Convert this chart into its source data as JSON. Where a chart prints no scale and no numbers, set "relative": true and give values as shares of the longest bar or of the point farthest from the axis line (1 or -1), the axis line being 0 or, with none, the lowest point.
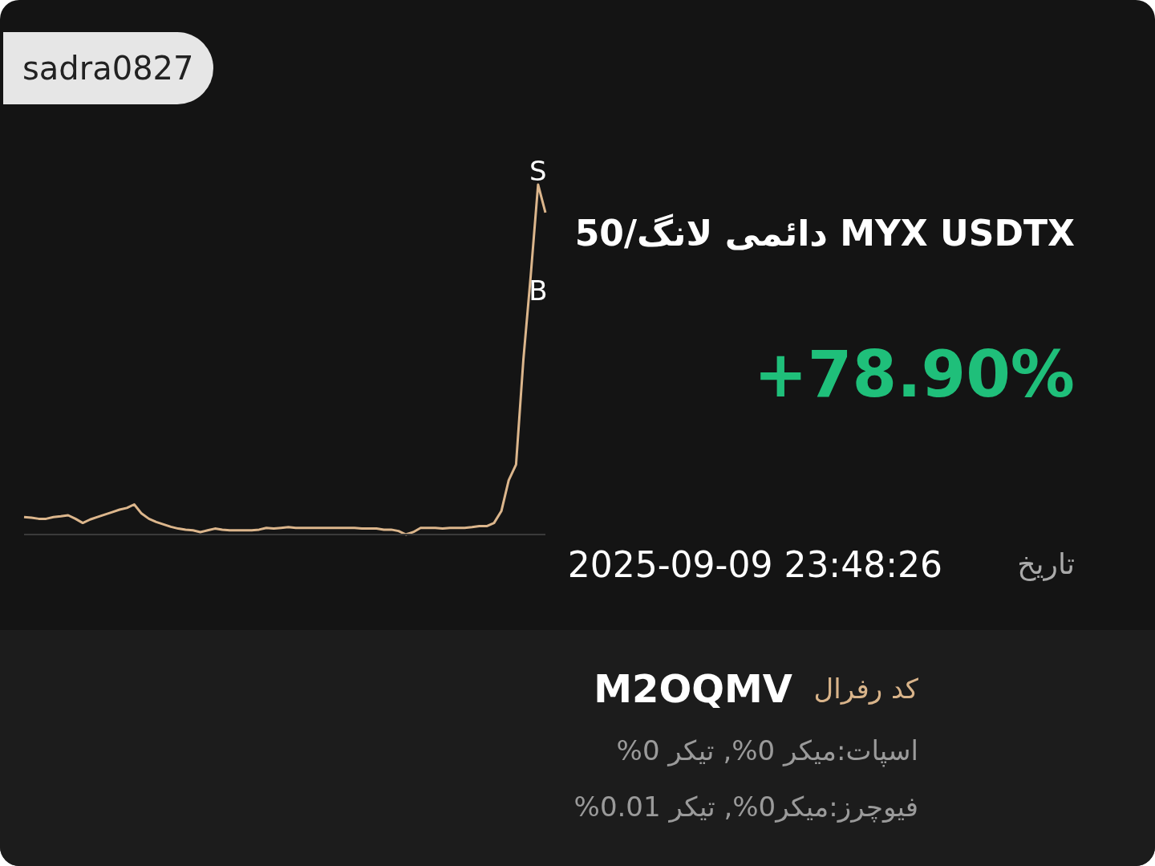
{
  "chart_data": {
    "type": "line",
    "relative": true,
    "title": "MYX USDTX دائمی لانگ/50",
    "subtitle": "+78.90%",
    "annotations": [
      "sadra0827",
      "تاریخ",
      "2025-09-09 23:48:26",
      "کد رفرال",
      "M2OQMV",
      "اسپات:میکر 0%, تیکر 0%",
      "فیوچرز:میکر0%, تیکر 0.01%",
      "S",
      "B"
    ],
    "categories": [
      null,
      null,
      null,
      null,
      null,
      null,
      null,
      null,
      null,
      null,
      null,
      null,
      null,
      null,
      null,
      null,
      null,
      null,
      null,
      null,
      null,
      null,
      null,
      null,
      null,
      null,
      null,
      null,
      null,
      null,
      null,
      null,
      null,
      null,
      null,
      null,
      null,
      null,
      null,
      null,
      null,
      null,
      null,
      null,
      null,
      null,
      null,
      null,
      null,
      null,
      null,
      null,
      null,
      null,
      null,
      null,
      null,
      null,
      null,
      null,
      null,
      null,
      null,
      null,
      null,
      null,
      null,
      null,
      null,
      null,
      null,
      null
    ],
    "series": [
      {
        "color": "#dcb68c",
        "values": [
          0.05,
          0.048,
          0.045,
          0.045,
          0.05,
          0.052,
          0.055,
          0.045,
          0.033,
          0.043,
          0.05,
          0.057,
          0.064,
          0.071,
          0.076,
          0.086,
          0.06,
          0.045,
          0.036,
          0.029,
          0.022,
          0.017,
          0.014,
          0.012,
          0.007,
          0.012,
          0.017,
          0.014,
          0.012,
          0.012,
          0.012,
          0.012,
          0.014,
          0.019,
          0.017,
          0.019,
          0.021,
          0.019,
          0.019,
          0.019,
          0.019,
          0.019,
          0.019,
          0.019,
          0.019,
          0.019,
          0.017,
          0.017,
          0.017,
          0.014,
          0.014,
          0.01,
          0,
          0.007,
          0.019,
          0.019,
          0.019,
          0.017,
          0.019,
          0.019,
          0.019,
          0.021,
          0.024,
          0.024,
          0.033,
          0.067,
          0.155,
          0.2,
          0.5,
          0.74,
          1.0,
          0.92
        ]
      }
    ],
    "marker": "none",
    "line_style": "solid"
  }
}
